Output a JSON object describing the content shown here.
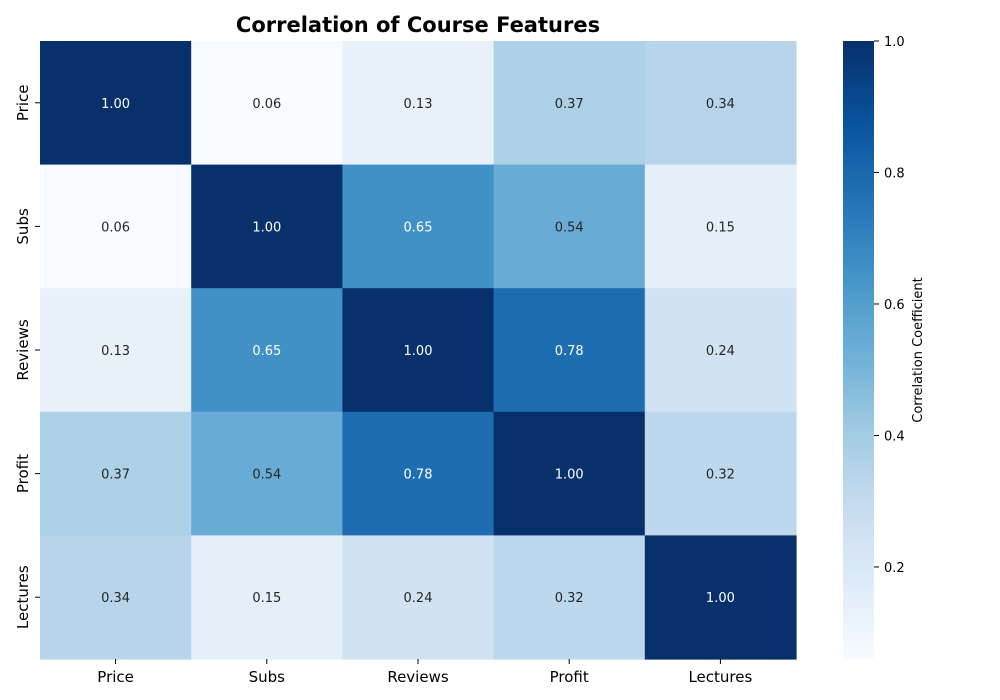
{
  "chart_data": {
    "type": "heatmap",
    "title": "Correlation of Course Features",
    "x_categories": [
      "Price",
      "Subs",
      "Reviews",
      "Profit",
      "Lectures"
    ],
    "y_categories": [
      "Price",
      "Subs",
      "Reviews",
      "Profit",
      "Lectures"
    ],
    "values": [
      [
        1.0,
        0.06,
        0.13,
        0.37,
        0.34
      ],
      [
        0.06,
        1.0,
        0.65,
        0.54,
        0.15
      ],
      [
        0.13,
        0.65,
        1.0,
        0.78,
        0.24
      ],
      [
        0.37,
        0.54,
        0.78,
        1.0,
        0.32
      ],
      [
        0.34,
        0.15,
        0.24,
        0.32,
        1.0
      ]
    ],
    "value_format": "0.00",
    "colormap": "Blues",
    "colorbar": {
      "label": "Correlation Coefficient",
      "range": [
        0.06,
        1.0
      ],
      "ticks": [
        0.2,
        0.4,
        0.6,
        0.8,
        1.0
      ],
      "tick_labels": [
        "0.2",
        "0.4",
        "0.6",
        "0.8",
        "1.0"
      ]
    }
  }
}
